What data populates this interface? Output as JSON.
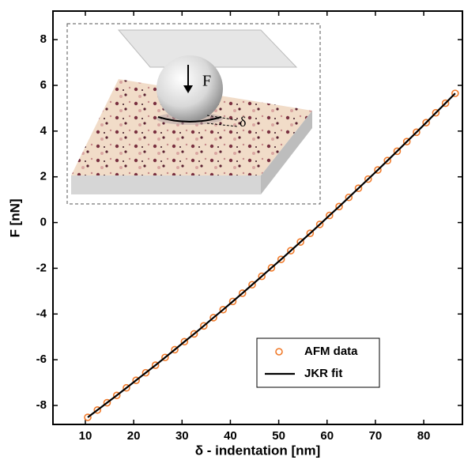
{
  "chart_data": {
    "type": "scatter",
    "xlabel": "δ - indentation [nm]",
    "ylabel": "F [nN]",
    "xlim": [
      3.3,
      88
    ],
    "ylim": [
      -8.83,
      9.25
    ],
    "xticks": [
      10,
      20,
      30,
      40,
      50,
      60,
      70,
      80
    ],
    "yticks": [
      -8,
      -6,
      -4,
      -2,
      0,
      2,
      4,
      6,
      8
    ],
    "annotations": [
      "F",
      "δ"
    ],
    "legend": "lower right",
    "x": [
      10.5,
      12.5,
      14.5,
      16.5,
      18.5,
      20.5,
      22.5,
      24.5,
      26.5,
      28.5,
      30.5,
      32.5,
      34.5,
      36.5,
      38.5,
      40.5,
      42.5,
      44.5,
      46.5,
      48.5,
      50.5,
      52.5,
      54.5,
      56.5,
      58.5,
      60.5,
      62.5,
      64.5,
      66.5,
      68.5,
      70.5,
      72.5,
      74.5,
      76.5,
      78.5,
      80.5,
      82.5,
      84.5,
      86.5
    ],
    "series": [
      {
        "name": "AFM data",
        "color": "#f07a2a",
        "style": "markers",
        "values": [
          -8.52,
          -8.2,
          -7.88,
          -7.56,
          -7.23,
          -6.9,
          -6.57,
          -6.24,
          -5.9,
          -5.56,
          -5.21,
          -4.87,
          -4.52,
          -4.16,
          -3.81,
          -3.45,
          -3.09,
          -2.72,
          -2.35,
          -1.98,
          -1.61,
          -1.23,
          -0.85,
          -0.47,
          -0.08,
          0.31,
          0.7,
          1.1,
          1.5,
          1.9,
          2.3,
          2.71,
          3.12,
          3.54,
          3.95,
          4.37,
          4.8,
          5.22,
          5.65
        ]
      },
      {
        "name": "JKR fit",
        "color": "#000000",
        "style": "line",
        "values": [
          -8.52,
          -8.2,
          -7.88,
          -7.56,
          -7.23,
          -6.9,
          -6.57,
          -6.24,
          -5.9,
          -5.56,
          -5.21,
          -4.87,
          -4.52,
          -4.16,
          -3.81,
          -3.45,
          -3.09,
          -2.72,
          -2.35,
          -1.98,
          -1.61,
          -1.23,
          -0.85,
          -0.47,
          -0.08,
          0.31,
          0.7,
          1.1,
          1.5,
          1.9,
          2.3,
          2.71,
          3.12,
          3.54,
          3.95,
          4.37,
          4.8,
          5.22,
          5.65
        ]
      }
    ]
  }
}
